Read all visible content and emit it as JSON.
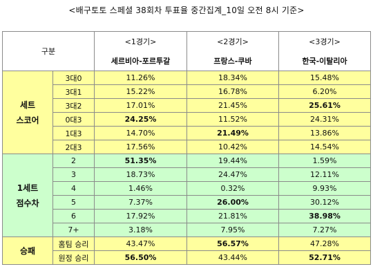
{
  "title": "<배구토토 스페셜 38회차 투표율 중간집계_10일 오전 8시 기준>",
  "header": {
    "gubun": "구분",
    "games": [
      {
        "label": "<1경기>",
        "teams": "세르비아-포르투갈"
      },
      {
        "label": "<2경기>",
        "teams": "프랑스-쿠바"
      },
      {
        "label": "<3경기>",
        "teams": "한국-이탈리아"
      }
    ]
  },
  "groups": {
    "set_score": {
      "line1": "세트",
      "line2": "스코어"
    },
    "set_diff": {
      "line1": "1세트",
      "line2": "점수차"
    },
    "result": {
      "line1": "승패"
    }
  },
  "set_score_rows": [
    {
      "label": "3대0",
      "v": [
        "11.26%",
        "18.34%",
        "15.48%"
      ]
    },
    {
      "label": "3대1",
      "v": [
        "15.22%",
        "16.78%",
        "6.20%"
      ]
    },
    {
      "label": "3대2",
      "v": [
        "17.01%",
        "21.45%",
        "25.61%"
      ]
    },
    {
      "label": "0대3",
      "v": [
        "24.25%",
        "11.52%",
        "24.31%"
      ]
    },
    {
      "label": "1대3",
      "v": [
        "14.70%",
        "21.49%",
        "13.86%"
      ]
    },
    {
      "label": "2대3",
      "v": [
        "17.56%",
        "10.42%",
        "14.54%"
      ]
    }
  ],
  "set_diff_rows": [
    {
      "label": "2",
      "v": [
        "51.35%",
        "19.44%",
        "1.59%"
      ]
    },
    {
      "label": "3",
      "v": [
        "18.73%",
        "24.47%",
        "12.11%"
      ]
    },
    {
      "label": "4",
      "v": [
        "1.46%",
        "0.32%",
        "9.93%"
      ]
    },
    {
      "label": "5",
      "v": [
        "7.37%",
        "26.00%",
        "30.12%"
      ]
    },
    {
      "label": "6",
      "v": [
        "17.92%",
        "21.81%",
        "38.98%"
      ]
    },
    {
      "label": "7+",
      "v": [
        "3.18%",
        "7.95%",
        "7.27%"
      ]
    }
  ],
  "result_rows": [
    {
      "label": "홈팀 승리",
      "v": [
        "43.47%",
        "56.57%",
        "47.28%"
      ]
    },
    {
      "label": "원정 승리",
      "v": [
        "56.50%",
        "43.44%",
        "52.71%"
      ]
    }
  ],
  "highlight_colors": {
    "set_score": "#ffff9e",
    "set_diff": "#ccffcc",
    "result": "#ffff9e"
  }
}
